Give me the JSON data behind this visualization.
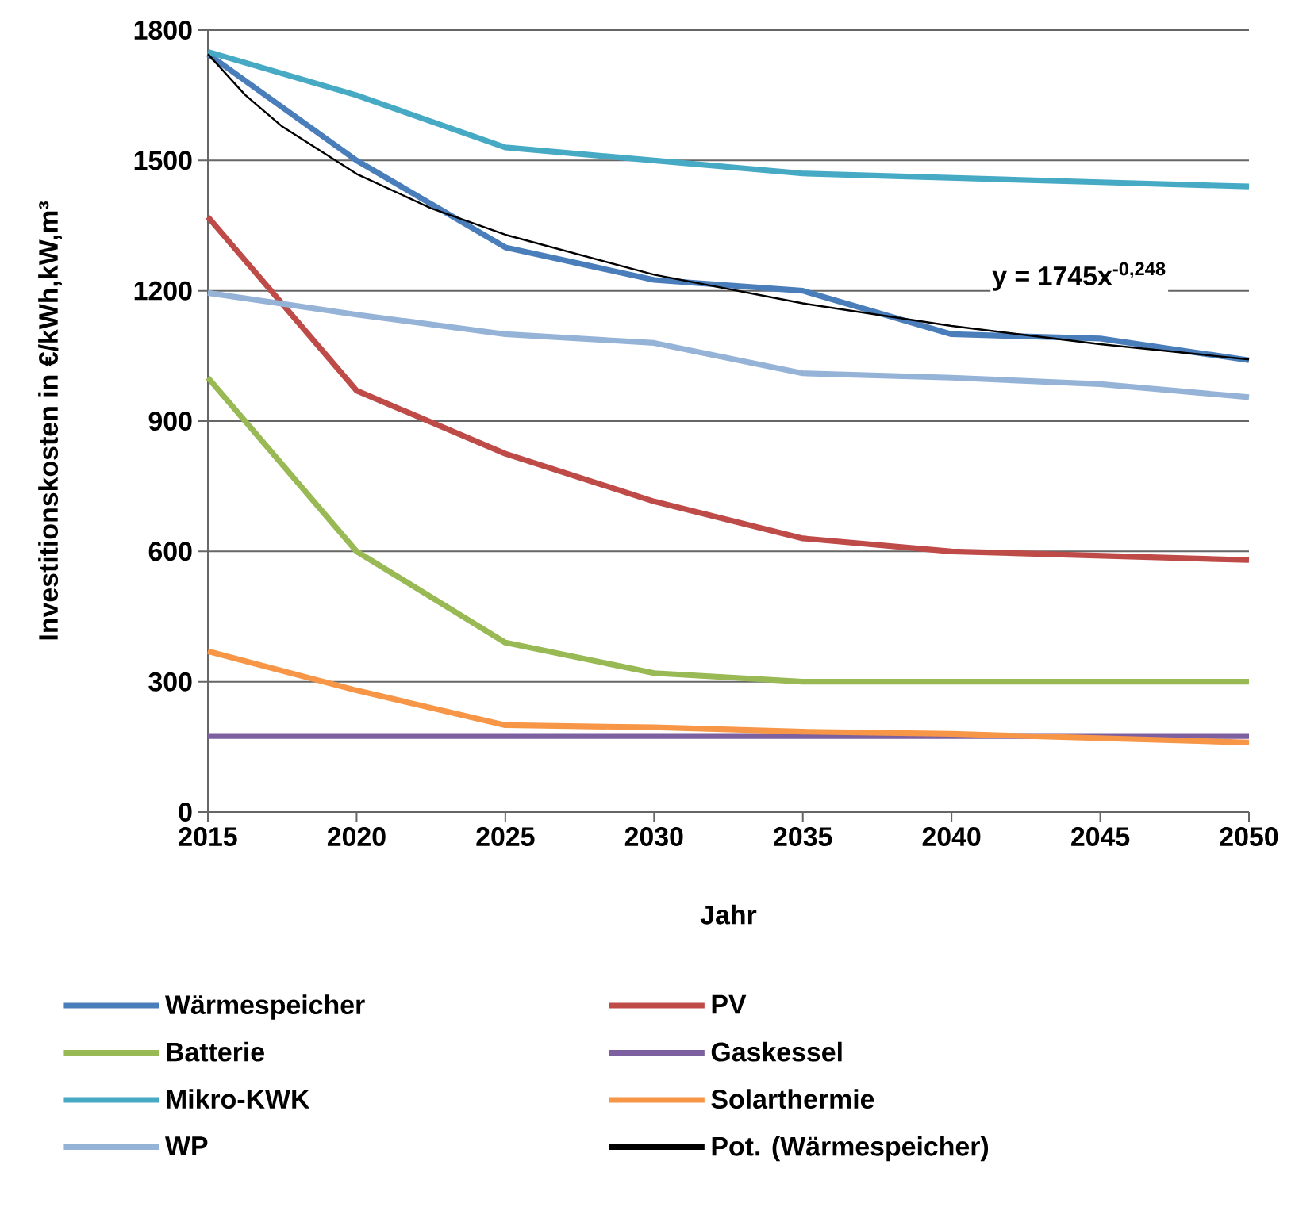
{
  "chart_data": {
    "type": "line",
    "xlabel": "Jahr",
    "ylabel": "Investitionskosten in €/kWh,kW,m³",
    "x": [
      2015,
      2020,
      2025,
      2030,
      2035,
      2040,
      2045,
      2050
    ],
    "xlim": [
      2015,
      2050
    ],
    "xticks": [
      2015,
      2020,
      2025,
      2030,
      2035,
      2040,
      2045,
      2050
    ],
    "ylim": [
      0,
      1800
    ],
    "yticks": [
      0,
      300,
      600,
      900,
      1200,
      1500,
      1800
    ],
    "grid": "y",
    "legend": "bottom",
    "marker": "none",
    "line_style": "solid",
    "series": [
      {
        "name": "Wärmespeicher",
        "color": "#4a7ebb",
        "values": [
          1745,
          1500,
          1300,
          1225,
          1200,
          1100,
          1090,
          1040
        ]
      },
      {
        "name": "PV",
        "color": "#be4b48",
        "values": [
          1370,
          970,
          825,
          715,
          630,
          600,
          590,
          580
        ]
      },
      {
        "name": "Batterie",
        "color": "#98b954",
        "values": [
          1000,
          600,
          390,
          320,
          300,
          300,
          300,
          300
        ]
      },
      {
        "name": "Gaskessel",
        "color": "#7d60a0",
        "values": [
          175,
          175,
          175,
          175,
          175,
          175,
          175,
          175
        ]
      },
      {
        "name": "Mikro-KWK",
        "color": "#46aac5",
        "values": [
          1750,
          1650,
          1530,
          1500,
          1470,
          1460,
          1450,
          1440
        ]
      },
      {
        "name": "Solarthermie",
        "color": "#f79646",
        "values": [
          370,
          280,
          200,
          195,
          185,
          180,
          170,
          160
        ]
      },
      {
        "name": "WP",
        "color": "#95b3d7",
        "values": [
          1195,
          1145,
          1100,
          1080,
          1010,
          1000,
          985,
          955
        ]
      },
      {
        "name": "Pot. (Wärmespeicher)",
        "color": "#000000",
        "type": "line",
        "x": [
          2015,
          2016.25,
          2017.5,
          2020,
          2022.5,
          2025,
          2030,
          2035,
          2040,
          2045,
          2050
        ],
        "values": [
          1745,
          1651,
          1578,
          1469,
          1390,
          1329,
          1237,
          1171,
          1119,
          1077,
          1042
        ]
      }
    ],
    "annotations": [
      "y = 1745x$^{-0,248}$"
    ]
  }
}
